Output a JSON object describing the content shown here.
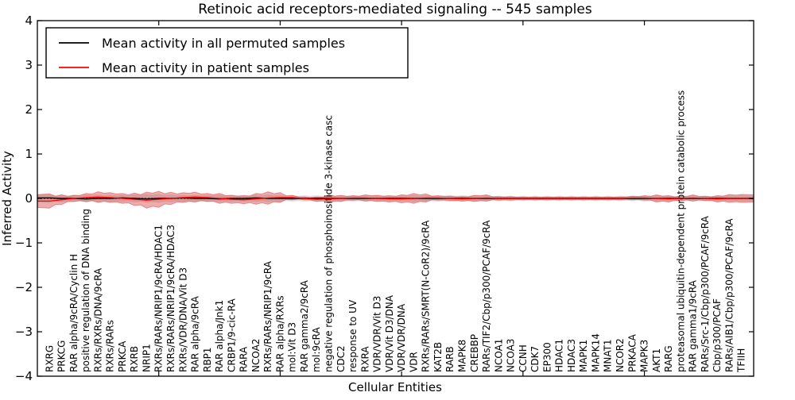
{
  "chart_data": {
    "type": "area",
    "title": "Retinoic acid receptors-mediated signaling -- 545 samples",
    "xlabel": "Cellular Entities",
    "ylabel": "Inferred Activity",
    "ylim": [
      -4,
      4
    ],
    "yticks": [
      -4,
      -3,
      -2,
      -1,
      0,
      1,
      2,
      3,
      4
    ],
    "xticks_positions": [
      10,
      20,
      30,
      40,
      50
    ],
    "grid": false,
    "legend_position": "upper left",
    "legend": [
      {
        "label": "Mean activity in all permuted samples",
        "color": "#000000"
      },
      {
        "label": "Mean activity in patient samples",
        "color": "#ff0000"
      }
    ],
    "colors": {
      "patient_band": "#d94a4a",
      "permuted_band": "#aaaaaa",
      "patient_line": "#ff0000",
      "permuted_line": "#000000",
      "zero_line": "#000000",
      "frame": "#000000"
    },
    "entities": [
      "RXRG",
      "PRKCG",
      "RAR alpha/9cRA/Cyclin H",
      "positive regulation of DNA binding",
      "RXRs/RXRs/DNA/9cRA",
      "RXRs/RARs",
      "PRKCA",
      "RXRB",
      "NRIP1",
      "RXRs/RARs/NRIP1/9cRA/HDAC1",
      "RXRs/RARs/NRIP1/9cRA/HDAC3",
      "RXRs/VDR/DNA/Vit D3",
      "RAR alpha/9cRA",
      "RBP1",
      "RAR alpha/Jnk1",
      "CRBP1/9-cic-RA",
      "RARA",
      "NCOA2",
      "RXRs/RARs/NRIP1/9cRA",
      "RAR alpha/RXRs",
      "mol:Vit D3",
      "RAR gamma2/9cRA",
      "mol:9cRA",
      "negative regulation of phosphoinositide 3-kinase casc",
      "CDC2",
      "response to UV",
      "RXRA",
      "VDR/VDR/Vit D3",
      "VDR/Vit D3/DNA",
      "VDR/VDR/DNA",
      "VDR",
      "RXRs/RARs/SMRT(N-CoR2)/9cRA",
      "KAT2B",
      "RARB",
      "MAPK8",
      "CREBBP",
      "RARs/TIF2/Cbp/p300/PCAF/9cRA",
      "NCOA1",
      "NCOA3",
      "CCNH",
      "CDK7",
      "EP300",
      "HDAC1",
      "HDAC3",
      "MAPK1",
      "MAPK14",
      "MNAT1",
      "NCOR2",
      "PRKACA",
      "MAPK3",
      "AKT1",
      "RARG",
      "proteasomal ubiquitin-dependent protein catabolic process",
      "RAR gamma1/9cRA",
      "RARs/Src-1/Cbp/p300/PCAF/9cRA",
      "Cbp/p300/PCAF",
      "RARs/AIB1/Cbp/p300/PCAF/9cRA",
      "TFIIH"
    ],
    "series": [
      {
        "name": "patient_band_halfwidth",
        "values": [
          0.16,
          0.11,
          0.07,
          0.09,
          0.12,
          0.11,
          0.11,
          0.14,
          0.18,
          0.18,
          0.14,
          0.11,
          0.11,
          0.09,
          0.11,
          0.09,
          0.09,
          0.12,
          0.14,
          0.11,
          0.05,
          0.03,
          0.05,
          0.09,
          0.07,
          0.05,
          0.07,
          0.07,
          0.07,
          0.09,
          0.11,
          0.09,
          0.05,
          0.05,
          0.05,
          0.07,
          0.07,
          0.04,
          0.04,
          0.03,
          0.03,
          0.03,
          0.03,
          0.03,
          0.03,
          0.03,
          0.03,
          0.03,
          0.04,
          0.05,
          0.08,
          0.07,
          0.05,
          0.07,
          0.05,
          0.07,
          0.09,
          0.09
        ]
      },
      {
        "name": "permuted_band_halfwidth",
        "values": [
          0.1,
          0.09,
          0.08,
          0.09,
          0.09,
          0.08,
          0.08,
          0.09,
          0.1,
          0.1,
          0.09,
          0.08,
          0.08,
          0.08,
          0.08,
          0.08,
          0.08,
          0.08,
          0.09,
          0.08,
          0.07,
          0.07,
          0.07,
          0.08,
          0.07,
          0.07,
          0.07,
          0.07,
          0.07,
          0.07,
          0.08,
          0.07,
          0.07,
          0.07,
          0.07,
          0.07,
          0.07,
          0.06,
          0.06,
          0.06,
          0.06,
          0.06,
          0.06,
          0.06,
          0.06,
          0.06,
          0.06,
          0.06,
          0.06,
          0.07,
          0.07,
          0.07,
          0.06,
          0.07,
          0.06,
          0.07,
          0.07,
          0.07
        ]
      },
      {
        "name": "mean_patient",
        "values": [
          -0.06,
          -0.03,
          0.0,
          0.02,
          0.03,
          0.02,
          0.0,
          -0.02,
          -0.04,
          -0.02,
          0.0,
          0.02,
          0.03,
          0.02,
          0.0,
          -0.02,
          -0.03,
          -0.01,
          0.01,
          0.02,
          0.02,
          0.0,
          -0.02,
          -0.01,
          0.0,
          0.01,
          0.01,
          0.0,
          -0.01,
          -0.01,
          0.0,
          0.01,
          0.01,
          0.0,
          -0.01,
          0.0,
          0.01,
          0.0,
          0.0,
          0.0,
          0.0,
          0.0,
          0.0,
          0.0,
          0.0,
          0.0,
          0.0,
          0.0,
          0.01,
          0.01,
          0.0,
          -0.01,
          0.0,
          0.01,
          0.0,
          -0.01,
          0.0,
          0.0
        ]
      },
      {
        "name": "mean_permuted",
        "values": [
          0.01,
          0.0,
          0.0,
          -0.01,
          0.0,
          0.0,
          0.01,
          0.0,
          -0.01,
          0.0,
          0.0,
          0.01,
          0.0,
          0.0,
          -0.01,
          0.0,
          0.0,
          0.01,
          0.0,
          0.0,
          0.0,
          0.0,
          0.0,
          0.0,
          0.0,
          0.0,
          0.0,
          0.0,
          0.0,
          0.0,
          0.0,
          0.0,
          0.0,
          0.0,
          0.0,
          0.0,
          0.0,
          0.0,
          0.0,
          0.0,
          0.0,
          0.0,
          0.0,
          0.0,
          0.0,
          0.0,
          0.0,
          0.0,
          0.0,
          0.0,
          0.0,
          0.0,
          0.0,
          0.0,
          0.0,
          0.0,
          0.0,
          0.0
        ]
      }
    ]
  }
}
